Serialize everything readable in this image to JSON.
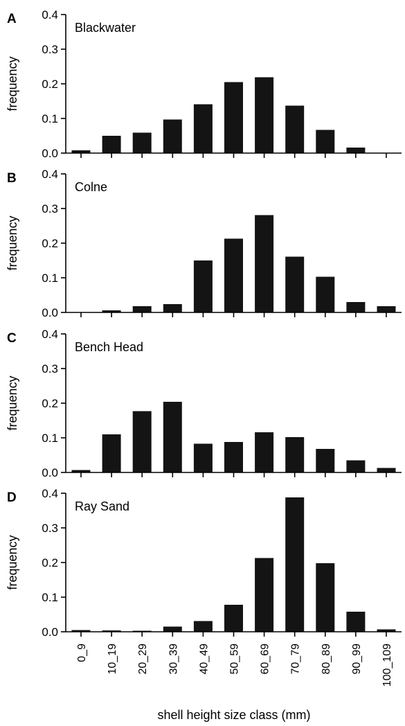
{
  "chart_data": {
    "type": "bar",
    "categories": [
      "0_9",
      "10_19",
      "20_29",
      "30_39",
      "40_49",
      "50_59",
      "60_69",
      "70_79",
      "80_89",
      "90_99",
      "100_109"
    ],
    "xlabel": "shell height size class (mm)",
    "ylabel": "frequency",
    "ylim": [
      0,
      0.4
    ],
    "yticks": [
      "0.0",
      "0.1",
      "0.2",
      "0.3",
      "0.4"
    ],
    "bar_color": "#141414",
    "panels": [
      {
        "letter": "A",
        "name": "Blackwater",
        "values": [
          0.008,
          0.05,
          0.059,
          0.097,
          0.141,
          0.205,
          0.219,
          0.137,
          0.067,
          0.016,
          0.0
        ]
      },
      {
        "letter": "B",
        "name": "Colne",
        "values": [
          0.0,
          0.006,
          0.018,
          0.024,
          0.15,
          0.213,
          0.281,
          0.161,
          0.103,
          0.03,
          0.018
        ]
      },
      {
        "letter": "C",
        "name": "Bench Head",
        "values": [
          0.007,
          0.11,
          0.177,
          0.204,
          0.083,
          0.088,
          0.116,
          0.102,
          0.068,
          0.035,
          0.013
        ]
      },
      {
        "letter": "D",
        "name": "Ray Sand",
        "values": [
          0.005,
          0.004,
          0.003,
          0.015,
          0.031,
          0.078,
          0.213,
          0.388,
          0.198,
          0.058,
          0.007
        ]
      }
    ]
  }
}
